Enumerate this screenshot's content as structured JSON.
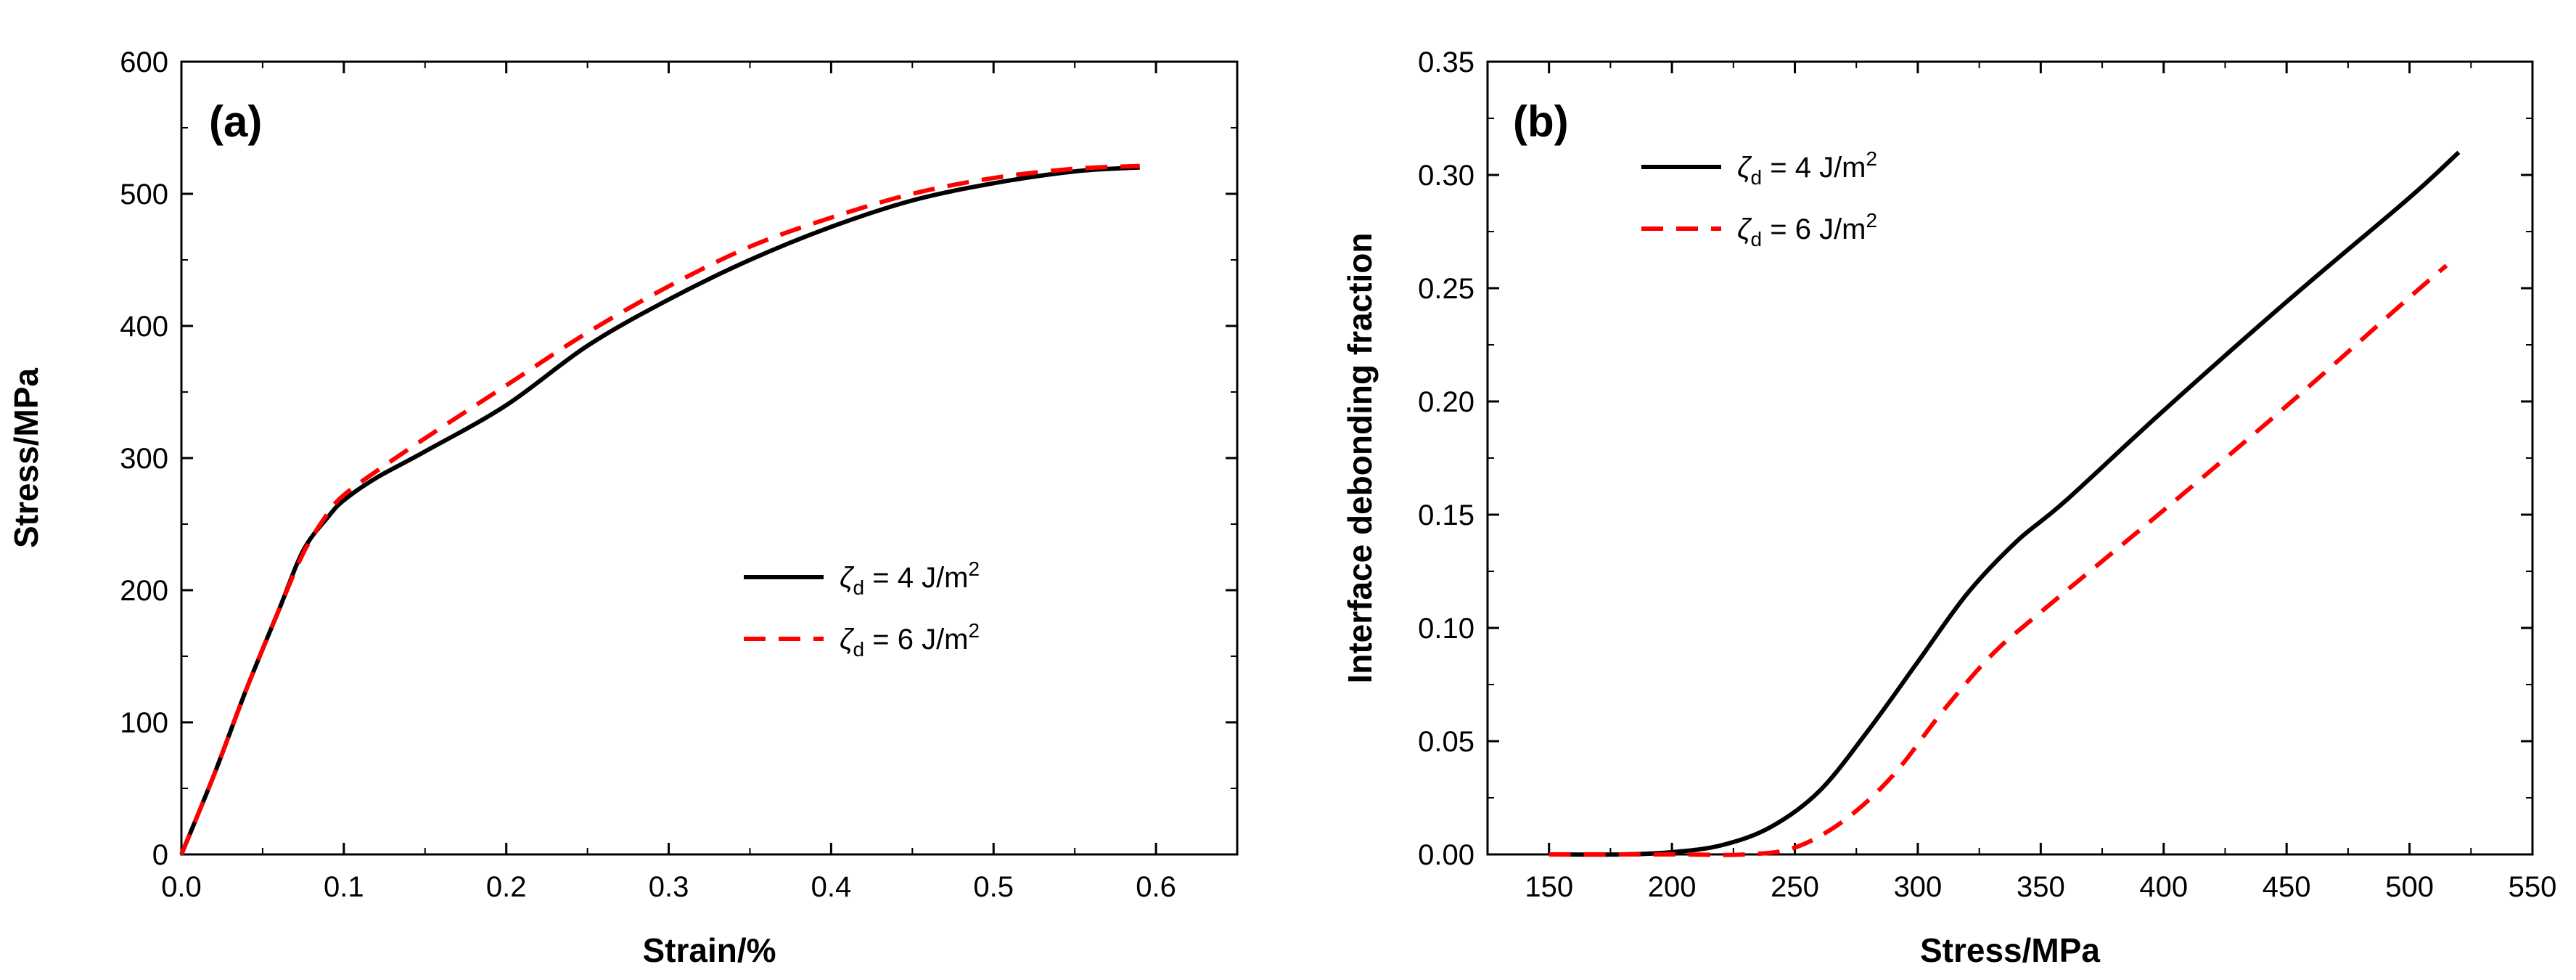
{
  "chart_data": [
    {
      "type": "line",
      "panel_label": "(a)",
      "xlabel": "Strain/%",
      "ylabel": "Stress/MPa",
      "xlim": [
        0,
        0.65
      ],
      "ylim": [
        0,
        600
      ],
      "xticks": [
        "0.0",
        "0.1",
        "0.2",
        "0.3",
        "0.4",
        "0.5",
        "0.6"
      ],
      "xtick_values": [
        0,
        0.1,
        0.2,
        0.3,
        0.4,
        0.5,
        0.6
      ],
      "yticks": [
        "0",
        "100",
        "200",
        "300",
        "400",
        "500",
        "600"
      ],
      "ytick_values": [
        0,
        100,
        200,
        300,
        400,
        500,
        600
      ],
      "legend_position": "center-right",
      "series": [
        {
          "name": "ζd = 4 J/m2",
          "legend": {
            "symbol": "ζ",
            "sub": "d",
            "text": " = 4 J/m",
            "sup": "2"
          },
          "color": "#000000",
          "style": "solid",
          "points": [
            [
              0,
              0
            ],
            [
              0.02,
              60
            ],
            [
              0.04,
              125
            ],
            [
              0.06,
              185
            ],
            [
              0.075,
              230
            ],
            [
              0.09,
              255
            ],
            [
              0.1,
              268
            ],
            [
              0.12,
              285
            ],
            [
              0.15,
              305
            ],
            [
              0.2,
              340
            ],
            [
              0.25,
              385
            ],
            [
              0.3,
              420
            ],
            [
              0.35,
              450
            ],
            [
              0.4,
              475
            ],
            [
              0.45,
              495
            ],
            [
              0.5,
              508
            ],
            [
              0.55,
              517
            ],
            [
              0.59,
              520
            ]
          ]
        },
        {
          "name": "ζd = 6 J/m2",
          "legend": {
            "symbol": "ζ",
            "sub": "d",
            "text": " = 6 J/m",
            "sup": "2"
          },
          "color": "#ff0000",
          "style": "dashed",
          "points": [
            [
              0,
              0
            ],
            [
              0.02,
              60
            ],
            [
              0.04,
              125
            ],
            [
              0.06,
              185
            ],
            [
              0.075,
              228
            ],
            [
              0.09,
              258
            ],
            [
              0.1,
              272
            ],
            [
              0.12,
              290
            ],
            [
              0.15,
              315
            ],
            [
              0.2,
              355
            ],
            [
              0.25,
              395
            ],
            [
              0.3,
              430
            ],
            [
              0.35,
              460
            ],
            [
              0.4,
              482
            ],
            [
              0.45,
              500
            ],
            [
              0.5,
              512
            ],
            [
              0.55,
              519
            ],
            [
              0.59,
              521
            ]
          ]
        }
      ]
    },
    {
      "type": "line",
      "panel_label": "(b)",
      "xlabel": "Stress/MPa",
      "ylabel": "Interface debonding fraction",
      "xlim": [
        125,
        550
      ],
      "ylim": [
        0,
        0.35
      ],
      "xticks": [
        "150",
        "200",
        "250",
        "300",
        "350",
        "400",
        "450",
        "500",
        "550"
      ],
      "xtick_values": [
        150,
        200,
        250,
        300,
        350,
        400,
        450,
        500,
        550
      ],
      "yticks": [
        "0.00",
        "0.05",
        "0.10",
        "0.15",
        "0.20",
        "0.25",
        "0.30",
        "0.35"
      ],
      "ytick_values": [
        0,
        0.05,
        0.1,
        0.15,
        0.2,
        0.25,
        0.3,
        0.35
      ],
      "legend_position": "top-left",
      "series": [
        {
          "name": "ζd = 4 J/m2",
          "legend": {
            "symbol": "ζ",
            "sub": "d",
            "text": " = 4 J/m",
            "sup": "2"
          },
          "color": "#000000",
          "style": "solid",
          "points": [
            [
              150,
              0
            ],
            [
              180,
              0
            ],
            [
              200,
              0.001
            ],
            [
              220,
              0.004
            ],
            [
              240,
              0.012
            ],
            [
              260,
              0.028
            ],
            [
              280,
              0.055
            ],
            [
              300,
              0.085
            ],
            [
              320,
              0.115
            ],
            [
              340,
              0.138
            ],
            [
              360,
              0.156
            ],
            [
              400,
              0.196
            ],
            [
              450,
              0.244
            ],
            [
              500,
              0.29
            ],
            [
              520,
              0.31
            ]
          ]
        },
        {
          "name": "ζd = 6 J/m2",
          "legend": {
            "symbol": "ζ",
            "sub": "d",
            "text": " = 6 J/m",
            "sup": "2"
          },
          "color": "#ff0000",
          "style": "dashed",
          "points": [
            [
              150,
              0
            ],
            [
              200,
              0
            ],
            [
              230,
              0
            ],
            [
              250,
              0.003
            ],
            [
              270,
              0.015
            ],
            [
              290,
              0.035
            ],
            [
              310,
              0.063
            ],
            [
              330,
              0.088
            ],
            [
              350,
              0.107
            ],
            [
              400,
              0.152
            ],
            [
              450,
              0.198
            ],
            [
              500,
              0.246
            ],
            [
              515,
              0.26
            ]
          ]
        }
      ]
    }
  ]
}
